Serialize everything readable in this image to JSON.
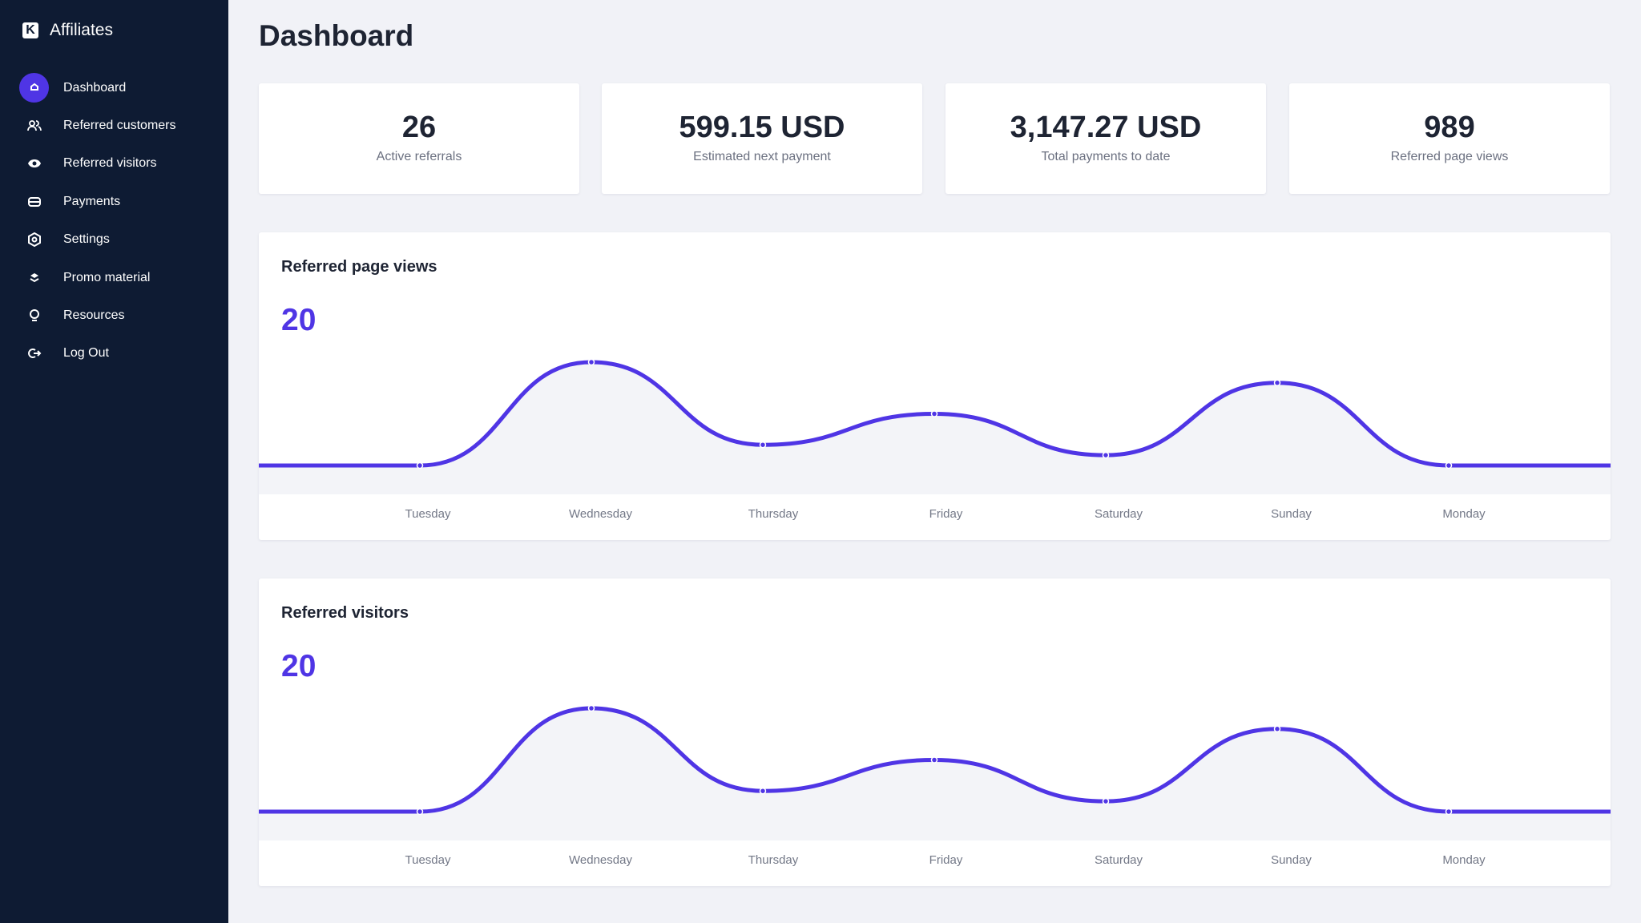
{
  "app": {
    "name": "Affiliates",
    "logo": "K"
  },
  "sidebar": {
    "items": [
      {
        "label": "Dashboard",
        "icon": "home-icon",
        "active": true
      },
      {
        "label": "Referred customers",
        "icon": "users-icon"
      },
      {
        "label": "Referred visitors",
        "icon": "eye-icon"
      },
      {
        "label": "Payments",
        "icon": "card-icon"
      },
      {
        "label": "Settings",
        "icon": "gear-icon"
      },
      {
        "label": "Promo material",
        "icon": "layers-icon"
      },
      {
        "label": "Resources",
        "icon": "lightbulb-icon"
      },
      {
        "label": "Log Out",
        "icon": "logout-icon"
      }
    ]
  },
  "page": {
    "title": "Dashboard"
  },
  "stats": [
    {
      "value": "26",
      "label": "Active referrals"
    },
    {
      "value": "599.15 USD",
      "label": "Estimated next payment"
    },
    {
      "value": "3,147.27 USD",
      "label": "Total payments to date"
    },
    {
      "value": "989",
      "label": "Referred page views"
    }
  ],
  "colors": {
    "accent": "#4f35e5",
    "sidebar": "#0e1b33",
    "fill": "#f3f4f8"
  },
  "chart_data": [
    {
      "type": "area",
      "title": "Referred page views",
      "headline": "20",
      "categories": [
        "Tuesday",
        "Wednesday",
        "Thursday",
        "Friday",
        "Saturday",
        "Sunday",
        "Monday"
      ],
      "values": [
        0,
        10,
        2,
        5,
        1,
        8,
        0
      ]
    },
    {
      "type": "area",
      "title": "Referred visitors",
      "headline": "20",
      "categories": [
        "Tuesday",
        "Wednesday",
        "Thursday",
        "Friday",
        "Saturday",
        "Sunday",
        "Monday"
      ],
      "values": [
        0,
        10,
        2,
        5,
        1,
        8,
        0
      ]
    }
  ]
}
